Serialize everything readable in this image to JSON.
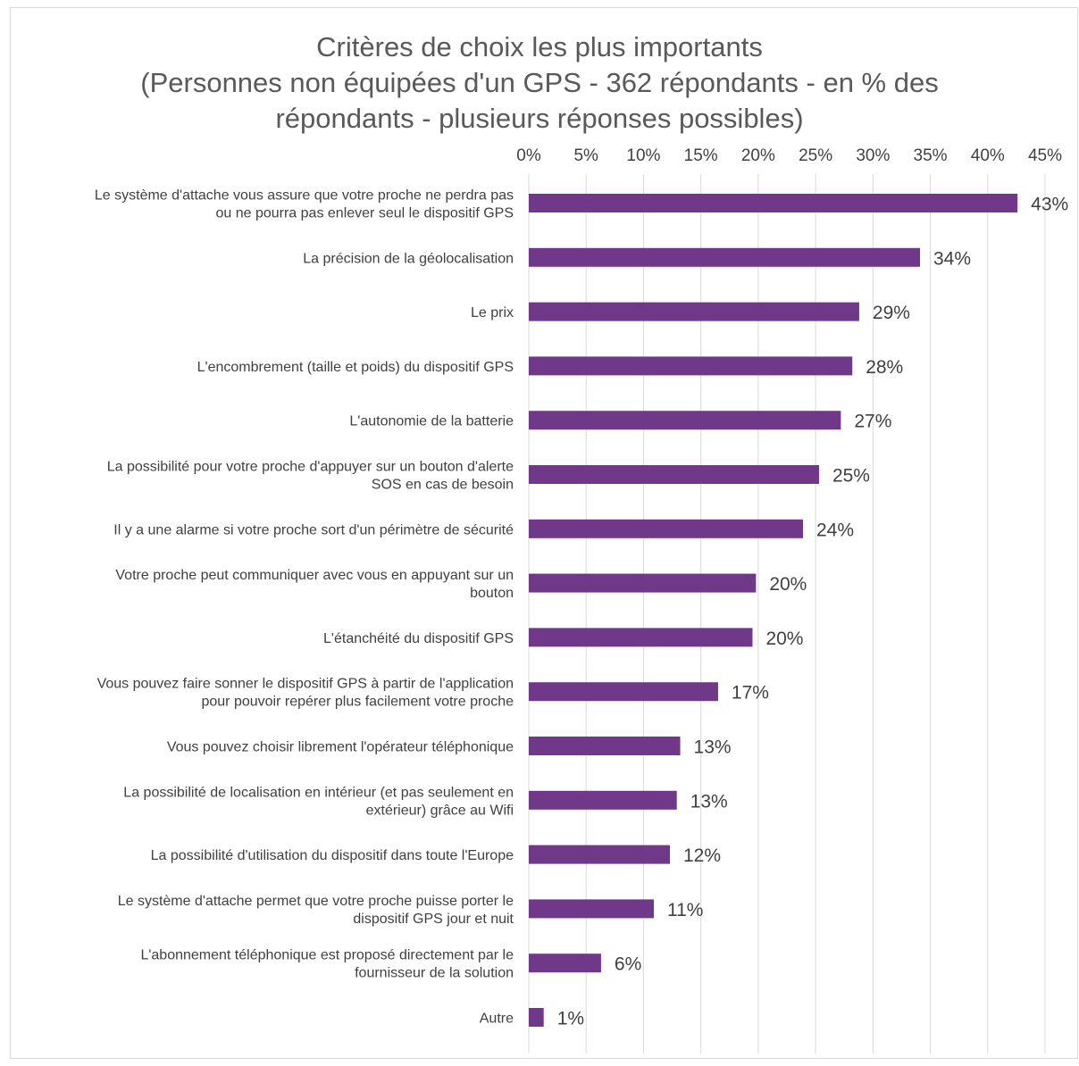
{
  "chart_data": {
    "type": "bar",
    "orientation": "horizontal",
    "title_lines": [
      "Critères de choix les plus importants",
      "(Personnes non équipées d'un GPS - 362 répondants - en % des",
      "répondants - plusieurs réponses possibles)"
    ],
    "categories": [
      [
        "Le système d'attache vous assure que votre proche ne perdra pas",
        "ou ne pourra pas enlever seul le dispositif GPS"
      ],
      [
        "La précision de la géolocalisation"
      ],
      [
        "Le prix"
      ],
      [
        "L'encombrement (taille et poids) du dispositif GPS"
      ],
      [
        "L'autonomie de la batterie"
      ],
      [
        "La possibilité pour votre proche d'appuyer sur un bouton d'alerte",
        "SOS en cas de besoin"
      ],
      [
        "Il y a une alarme si votre proche sort d'un périmètre de sécurité"
      ],
      [
        "Votre proche peut communiquer avec vous en appuyant sur un",
        "bouton"
      ],
      [
        "L'étanchéité du dispositif GPS"
      ],
      [
        "Vous pouvez faire sonner le dispositif GPS à partir de l'application",
        "pour pouvoir repérer plus facilement votre proche"
      ],
      [
        "Vous pouvez choisir librement l'opérateur téléphonique"
      ],
      [
        "La possibilité de localisation en intérieur (et pas seulement en",
        "extérieur) grâce au Wifi"
      ],
      [
        "La possibilité d'utilisation du dispositif dans toute l'Europe"
      ],
      [
        "Le système d'attache permet que votre proche puisse porter le",
        "dispositif GPS jour et nuit"
      ],
      [
        "L'abonnement téléphonique est proposé directement par le",
        "fournisseur de la solution"
      ],
      [
        "Autre"
      ]
    ],
    "values": [
      42.6,
      34.1,
      28.8,
      28.2,
      27.2,
      25.3,
      23.9,
      19.8,
      19.5,
      16.5,
      13.2,
      12.9,
      12.3,
      10.9,
      6.3,
      1.3
    ],
    "value_labels": [
      "43%",
      "34%",
      "29%",
      "28%",
      "27%",
      "25%",
      "24%",
      "20%",
      "20%",
      "17%",
      "13%",
      "13%",
      "12%",
      "11%",
      "6%",
      "1%"
    ],
    "x_ticks": [
      "0%",
      "5%",
      "10%",
      "15%",
      "20%",
      "25%",
      "30%",
      "35%",
      "40%",
      "45%"
    ],
    "xlim": [
      0,
      45
    ],
    "x_axis_position": "top",
    "grid": true,
    "legend": "none",
    "colors": {
      "bar": "#6f3889",
      "grid": "#d9d9d9",
      "text": "#404040",
      "title": "#595959",
      "border": "#d9d9d9"
    }
  }
}
